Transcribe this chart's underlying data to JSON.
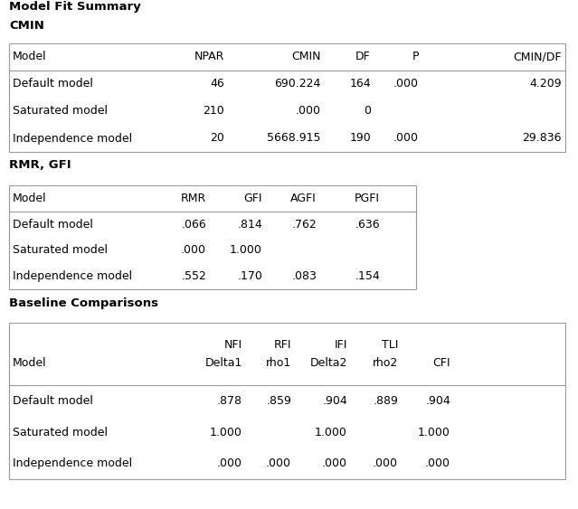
{
  "title": "Model Fit Summary",
  "bg_color": "#ffffff",
  "section1_title": "CMIN",
  "section2_title": "RMR, GFI",
  "section3_title": "Baseline Comparisons",
  "cmin_headers": [
    "Model",
    "NPAR",
    "CMIN",
    "DF",
    "P",
    "CMIN/DF"
  ],
  "cmin_rows": [
    [
      "Default model",
      "46",
      "690.224",
      "164",
      ".000",
      "4.209"
    ],
    [
      "Saturated model",
      "210",
      ".000",
      "0",
      "",
      ""
    ],
    [
      "Independence model",
      "20",
      "5668.915",
      "190",
      ".000",
      "29.836"
    ]
  ],
  "rmr_headers": [
    "Model",
    "RMR",
    "GFI",
    "AGFI",
    "PGFI"
  ],
  "rmr_rows": [
    [
      "Default model",
      ".066",
      ".814",
      ".762",
      ".636"
    ],
    [
      "Saturated model",
      ".000",
      "1.000",
      "",
      ""
    ],
    [
      "Independence model",
      ".552",
      ".170",
      ".083",
      ".154"
    ]
  ],
  "bc_headers_line1": [
    "",
    "NFI",
    "RFI",
    "IFI",
    "TLI",
    ""
  ],
  "bc_headers_line2": [
    "Model",
    "Delta1",
    "rho1",
    "Delta2",
    "rho2",
    "CFI"
  ],
  "bc_rows": [
    [
      "Default model",
      ".878",
      ".859",
      ".904",
      ".889",
      ".904"
    ],
    [
      "Saturated model",
      "1.000",
      "",
      "1.000",
      "",
      "1.000"
    ],
    [
      "Independence model",
      ".000",
      ".000",
      ".000",
      ".000",
      ".000"
    ]
  ],
  "line_color": "#999999",
  "font_size": 9.0,
  "title_font_size": 9.5,
  "section_font_size": 9.5
}
